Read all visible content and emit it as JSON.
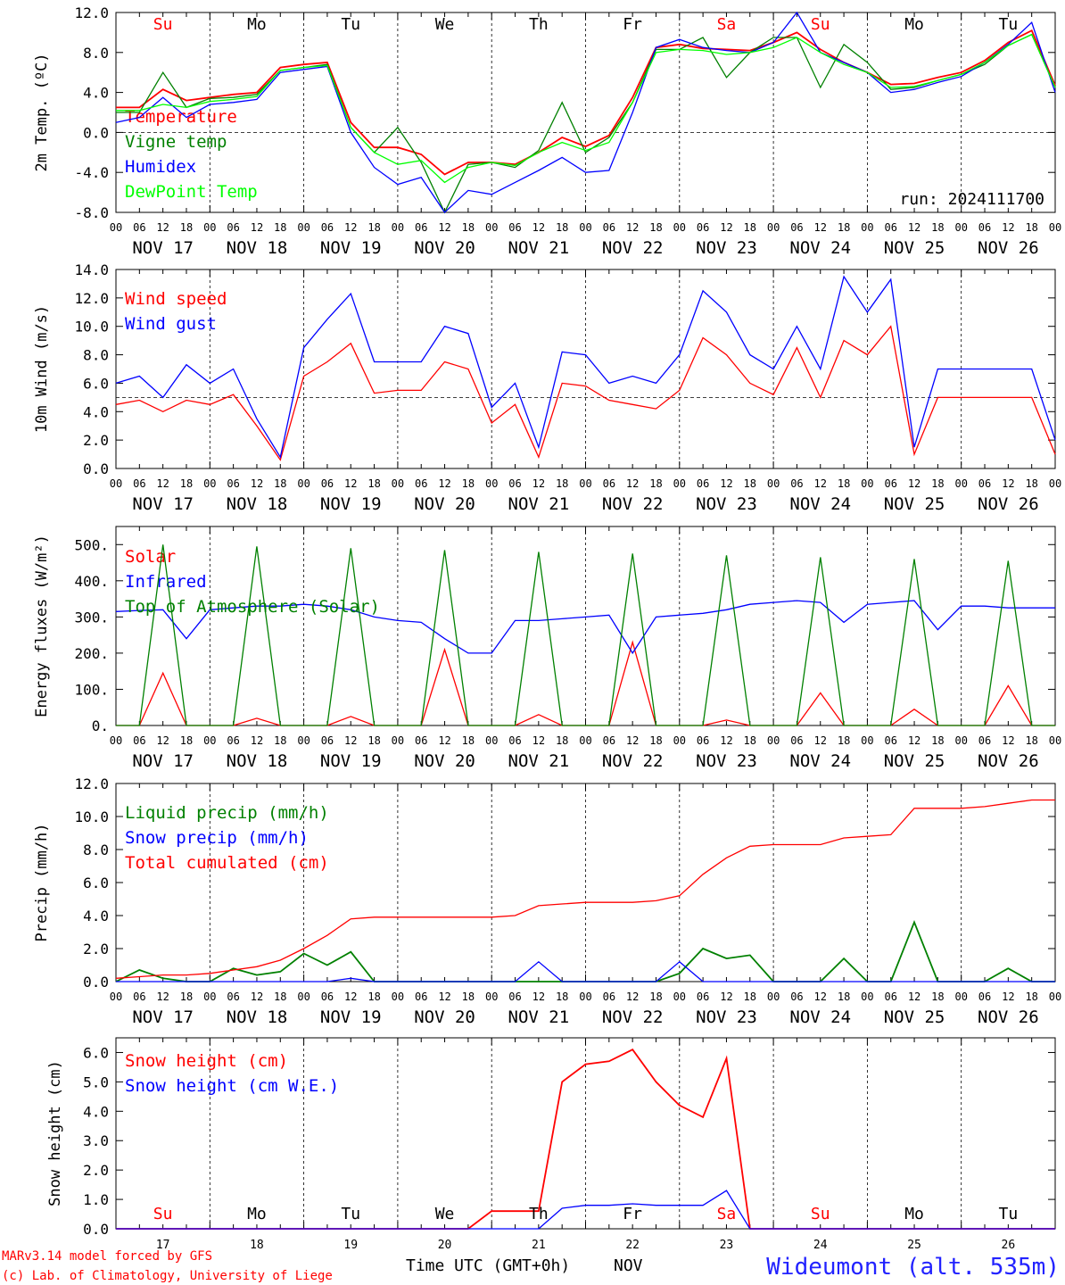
{
  "site": "Wideumont (alt. 535m)",
  "credit_line1": "MARv3.14 model forced by GFS",
  "credit_line2": "(c) Lab. of Climatology, University of Liege",
  "time_axis_label": "Time UTC (GMT+0h)",
  "time_axis_month": "NOV",
  "day_names": [
    "Su",
    "Mo",
    "Tu",
    "We",
    "Th",
    "Fr",
    "Sa",
    "Su",
    "Mo",
    "Tu"
  ],
  "weekend_color": "#ff0000",
  "weekday_color": "#000000",
  "day_numbers": [
    "17",
    "18",
    "19",
    "20",
    "21",
    "22",
    "23",
    "24",
    "25",
    "26"
  ],
  "date_labels": [
    "NOV 17",
    "NOV 18",
    "NOV 19",
    "NOV 20",
    "NOV 21",
    "NOV 22",
    "NOV 23",
    "NOV 24",
    "NOV 25",
    "NOV 26"
  ],
  "hour_ticks": [
    "00",
    "06",
    "12",
    "18"
  ],
  "chart_data": [
    {
      "type": "line",
      "ylabel": "2m Temp. (ºC)",
      "ylim": [
        -8,
        12
      ],
      "yticks": [
        "-8.0",
        "-4.0",
        "0.0",
        "4.0",
        "8.0",
        "12.0"
      ],
      "ytick_values": [
        -8,
        -4,
        0,
        4,
        8,
        12
      ],
      "ref_line": 0,
      "annotation": "run: 2024111700",
      "x_hours": [
        0,
        6,
        12,
        18,
        24,
        30,
        36,
        42,
        48,
        54,
        60,
        66,
        72,
        78,
        84,
        90,
        96,
        102,
        108,
        114,
        120,
        126,
        132,
        138,
        144,
        150,
        156,
        162,
        168,
        174,
        180,
        186,
        192,
        198,
        204,
        210,
        216,
        222,
        228,
        234,
        240
      ],
      "series": [
        {
          "name": "Temperature",
          "color": "#ff0000",
          "values": [
            2.5,
            2.5,
            4.3,
            3.2,
            3.5,
            3.8,
            4.0,
            6.5,
            6.8,
            7.0,
            1.0,
            -1.5,
            -1.5,
            -2.2,
            -4.2,
            -3.0,
            -3.0,
            -3.2,
            -2.0,
            -0.5,
            -1.4,
            -0.3,
            3.5,
            8.5,
            8.8,
            8.4,
            8.3,
            8.2,
            9.0,
            10.0,
            8.3,
            7.0,
            6.0,
            4.8,
            4.9,
            5.5,
            6.0,
            7.2,
            9.0,
            10.2,
            4.7
          ]
        },
        {
          "name": "Vigne temp",
          "color": "#008000",
          "values": [
            2.0,
            2.0,
            6.0,
            2.5,
            3.4,
            3.5,
            3.8,
            6.2,
            6.5,
            6.8,
            0.5,
            -2.0,
            0.5,
            -3.0,
            -8.0,
            -3.2,
            -3.0,
            -3.5,
            -1.8,
            3.0,
            -2.0,
            -0.5,
            3.0,
            8.3,
            8.3,
            9.5,
            5.5,
            8.0,
            9.5,
            9.5,
            4.5,
            8.8,
            7.0,
            4.3,
            4.5,
            5.2,
            5.8,
            6.8,
            8.7,
            9.8,
            4.5
          ]
        },
        {
          "name": "Humidex",
          "color": "#0000ff",
          "values": [
            1.0,
            1.5,
            3.5,
            1.5,
            2.8,
            3.0,
            3.3,
            6.0,
            6.3,
            6.6,
            0.0,
            -3.5,
            -5.2,
            -4.5,
            -8.0,
            -5.8,
            -6.2,
            -5.0,
            -3.8,
            -2.5,
            -4.0,
            -3.8,
            2.0,
            8.5,
            9.3,
            8.5,
            8.2,
            8.0,
            9.0,
            12.0,
            8.0,
            7.0,
            6.0,
            4.0,
            4.3,
            5.0,
            5.6,
            7.0,
            8.8,
            11.0,
            4.0
          ]
        },
        {
          "name": "DewPoint Temp",
          "color": "#00ff00",
          "values": [
            2.2,
            2.2,
            2.8,
            2.5,
            3.1,
            3.3,
            3.6,
            6.2,
            6.5,
            6.7,
            0.5,
            -2.0,
            -3.2,
            -2.8,
            -5.0,
            -3.5,
            -3.0,
            -3.3,
            -2.0,
            -1.0,
            -1.8,
            -1.0,
            3.0,
            8.0,
            8.3,
            8.2,
            7.8,
            8.0,
            8.5,
            9.5,
            8.0,
            6.8,
            6.0,
            4.5,
            4.6,
            5.2,
            5.8,
            7.0,
            8.7,
            9.8,
            4.5
          ]
        }
      ]
    },
    {
      "type": "line",
      "ylabel": "10m Wind (m/s)",
      "ylim": [
        0,
        14
      ],
      "yticks": [
        "0.0",
        "2.0",
        "4.0",
        "6.0",
        "8.0",
        "10.0",
        "12.0",
        "14.0"
      ],
      "ytick_values": [
        0,
        2,
        4,
        6,
        8,
        10,
        12,
        14
      ],
      "ref_line": 5,
      "x_hours": [
        0,
        6,
        12,
        18,
        24,
        30,
        36,
        42,
        48,
        54,
        60,
        66,
        72,
        78,
        84,
        90,
        96,
        102,
        108,
        114,
        120,
        126,
        132,
        138,
        144,
        150,
        156,
        162,
        168,
        174,
        180,
        186,
        192,
        198,
        204,
        210,
        216,
        222,
        228,
        234,
        240
      ],
      "series": [
        {
          "name": "Wind speed",
          "color": "#ff0000",
          "values": [
            4.5,
            4.8,
            4.0,
            4.8,
            4.5,
            5.2,
            3.0,
            0.6,
            6.5,
            7.5,
            8.8,
            5.3,
            5.5,
            5.5,
            7.5,
            7.0,
            3.2,
            4.5,
            0.8,
            6.0,
            5.8,
            4.8,
            4.5,
            4.2,
            5.5,
            9.2,
            8.0,
            6.0,
            5.2,
            8.5,
            5.0,
            9.0,
            8.0,
            10.0,
            1.0,
            5.0,
            5.0,
            5.0,
            5.0,
            5.0,
            1.0
          ]
        },
        {
          "name": "Wind gust",
          "color": "#0000ff",
          "values": [
            6.0,
            6.5,
            5.0,
            7.3,
            6.0,
            7.0,
            3.5,
            0.8,
            8.5,
            10.5,
            12.3,
            7.5,
            7.5,
            7.5,
            10.0,
            9.5,
            4.3,
            6.0,
            1.5,
            8.2,
            8.0,
            6.0,
            6.5,
            6.0,
            8.0,
            12.5,
            11.0,
            8.0,
            7.0,
            10.0,
            7.0,
            13.5,
            11.0,
            13.3,
            1.5,
            7.0,
            7.0,
            7.0,
            7.0,
            7.0,
            2.0
          ]
        }
      ]
    },
    {
      "type": "line",
      "ylabel": "Energy fluxes (W/m²)",
      "ylim": [
        0,
        550
      ],
      "yticks": [
        "0.",
        "100.",
        "200.",
        "300.",
        "400.",
        "500."
      ],
      "ytick_values": [
        0,
        100,
        200,
        300,
        400,
        500
      ],
      "x_hours": [
        0,
        6,
        12,
        18,
        24,
        30,
        36,
        42,
        48,
        54,
        60,
        66,
        72,
        78,
        84,
        90,
        96,
        102,
        108,
        114,
        120,
        126,
        132,
        138,
        144,
        150,
        156,
        162,
        168,
        174,
        180,
        186,
        192,
        198,
        204,
        210,
        216,
        222,
        228,
        234,
        240
      ],
      "series": [
        {
          "name": "Solar",
          "color": "#ff0000",
          "values": [
            0,
            0,
            145,
            0,
            0,
            0,
            20,
            0,
            0,
            0,
            25,
            0,
            0,
            0,
            210,
            0,
            0,
            0,
            30,
            0,
            0,
            0,
            230,
            0,
            0,
            0,
            15,
            0,
            0,
            0,
            90,
            0,
            0,
            0,
            45,
            0,
            0,
            0,
            110,
            0,
            0
          ]
        },
        {
          "name": "Infrared",
          "color": "#0000ff",
          "values": [
            315,
            318,
            320,
            240,
            320,
            325,
            330,
            330,
            335,
            330,
            320,
            300,
            290,
            285,
            240,
            200,
            200,
            290,
            290,
            295,
            300,
            305,
            200,
            300,
            305,
            310,
            320,
            335,
            340,
            345,
            340,
            285,
            335,
            340,
            345,
            265,
            330,
            330,
            325,
            325,
            325
          ]
        },
        {
          "name": "Top of Atmosphere (Solar)",
          "color": "#008000",
          "values": [
            0,
            0,
            500,
            0,
            0,
            0,
            495,
            0,
            0,
            0,
            490,
            0,
            0,
            0,
            485,
            0,
            0,
            0,
            480,
            0,
            0,
            0,
            475,
            0,
            0,
            0,
            470,
            0,
            0,
            0,
            465,
            0,
            0,
            0,
            460,
            0,
            0,
            0,
            455,
            0,
            0
          ]
        }
      ]
    },
    {
      "type": "line",
      "ylabel": "Precip (mm/h)",
      "ylim": [
        0,
        12
      ],
      "yticks": [
        "0.0",
        "2.0",
        "4.0",
        "6.0",
        "8.0",
        "10.0",
        "12.0"
      ],
      "ytick_values": [
        0,
        2,
        4,
        6,
        8,
        10,
        12
      ],
      "x_hours": [
        0,
        6,
        12,
        18,
        24,
        30,
        36,
        42,
        48,
        54,
        60,
        66,
        72,
        78,
        84,
        90,
        96,
        102,
        108,
        114,
        120,
        126,
        132,
        138,
        144,
        150,
        156,
        162,
        168,
        174,
        180,
        186,
        192,
        198,
        204,
        210,
        216,
        222,
        228,
        234,
        240
      ],
      "series": [
        {
          "name": "Liquid precip (mm/h)",
          "color": "#008000",
          "values": [
            0,
            0.7,
            0.2,
            0,
            0,
            0.8,
            0.4,
            0.6,
            1.7,
            1.0,
            1.8,
            0,
            0,
            0,
            0,
            0,
            0,
            0,
            0,
            0,
            0,
            0,
            0,
            0,
            0.5,
            2.0,
            1.4,
            1.6,
            0,
            0,
            0,
            1.4,
            0,
            0,
            3.6,
            0,
            0,
            0,
            0.8,
            0,
            0
          ]
        },
        {
          "name": "Snow precip (mm/h)",
          "color": "#0000ff",
          "values": [
            0,
            0,
            0,
            0,
            0,
            0,
            0,
            0,
            0,
            0,
            0.2,
            0,
            0,
            0,
            0,
            0,
            0,
            0,
            1.2,
            0,
            0,
            0,
            0,
            0,
            1.2,
            0,
            0,
            0,
            0,
            0,
            0,
            0,
            0,
            0,
            0,
            0,
            0,
            0,
            0,
            0,
            0
          ]
        },
        {
          "name": "Total cumulated (cm)",
          "color": "#ff0000",
          "values": [
            0.2,
            0.3,
            0.4,
            0.4,
            0.5,
            0.7,
            0.9,
            1.3,
            2.0,
            2.8,
            3.8,
            3.9,
            3.9,
            3.9,
            3.9,
            3.9,
            3.9,
            4.0,
            4.6,
            4.7,
            4.8,
            4.8,
            4.8,
            4.9,
            5.2,
            6.5,
            7.5,
            8.2,
            8.3,
            8.3,
            8.3,
            8.7,
            8.8,
            8.9,
            10.5,
            10.5,
            10.5,
            10.6,
            10.8,
            11.0,
            11.0
          ]
        }
      ]
    },
    {
      "type": "line",
      "ylabel": "Snow height (cm)",
      "ylim": [
        0,
        6.5
      ],
      "yticks": [
        "0.0",
        "1.0",
        "2.0",
        "3.0",
        "4.0",
        "5.0",
        "6.0"
      ],
      "ytick_values": [
        0,
        1,
        2,
        3,
        4,
        5,
        6
      ],
      "x_hours": [
        0,
        6,
        12,
        18,
        24,
        30,
        36,
        42,
        48,
        54,
        60,
        66,
        72,
        78,
        84,
        90,
        96,
        102,
        108,
        114,
        120,
        126,
        132,
        138,
        144,
        150,
        156,
        162,
        168,
        174,
        180,
        186,
        192,
        198,
        204,
        210,
        216,
        222,
        228,
        234,
        240
      ],
      "series": [
        {
          "name": "Snow height (cm)",
          "color": "#ff0000",
          "values": [
            0,
            0,
            0,
            0,
            0,
            0,
            0,
            0,
            0,
            0,
            0,
            0,
            0,
            0,
            0,
            0,
            0.6,
            0.6,
            0.6,
            5.0,
            5.6,
            5.7,
            6.1,
            5.0,
            4.2,
            3.8,
            5.8,
            0,
            0,
            0,
            0,
            0,
            0,
            0,
            0,
            0,
            0,
            0,
            0,
            0,
            0
          ]
        },
        {
          "name": "Snow height (cm W.E.)",
          "color": "#0000ff",
          "values": [
            0,
            0,
            0,
            0,
            0,
            0,
            0,
            0,
            0,
            0,
            0,
            0,
            0,
            0,
            0,
            0,
            0,
            0,
            0,
            0.7,
            0.8,
            0.8,
            0.85,
            0.8,
            0.8,
            0.8,
            1.3,
            0,
            0,
            0,
            0,
            0,
            0,
            0,
            0,
            0,
            0,
            0,
            0,
            0,
            0
          ]
        }
      ]
    }
  ]
}
